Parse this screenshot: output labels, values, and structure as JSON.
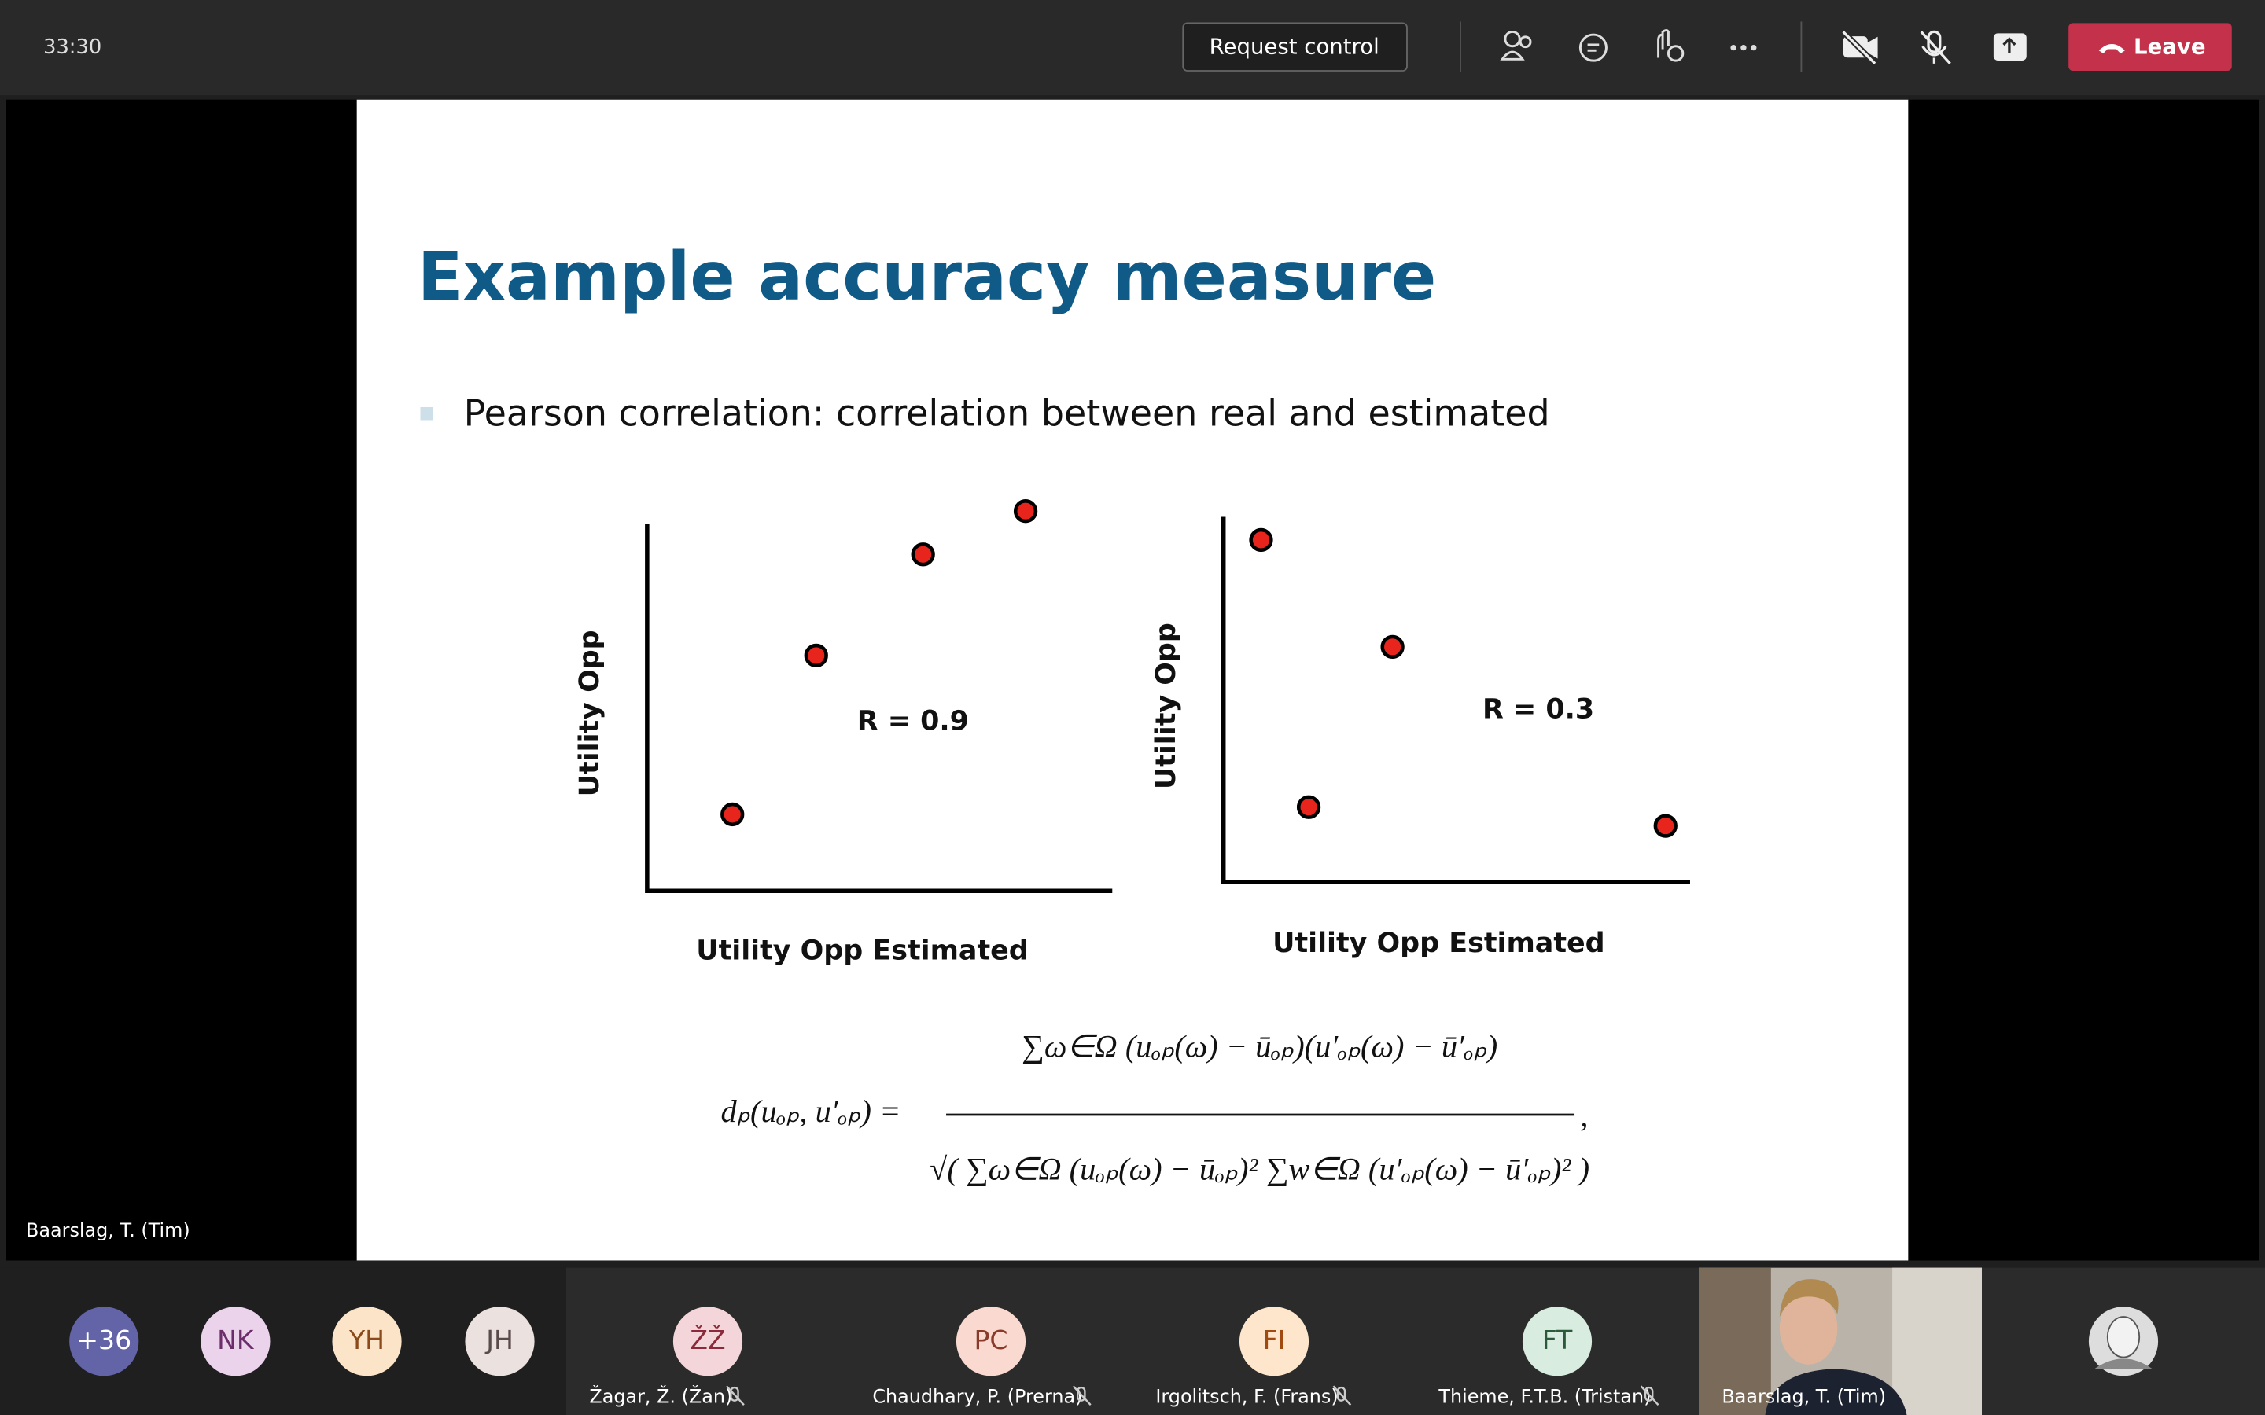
{
  "toolbar": {
    "time": "33:30",
    "request_control": "Request control",
    "leave": "Leave"
  },
  "stage": {
    "speaker": "Baarslag, T. (Tim)"
  },
  "slide": {
    "title": "Example accuracy measure",
    "bullet": "Pearson correlation: correlation between real and estimated",
    "plots": [
      {
        "y_label": "Utility Opp",
        "x_label": "Utility Opp Estimated",
        "annotation": "R = 0.9"
      },
      {
        "y_label": "Utility Opp",
        "x_label": "Utility Opp Estimated",
        "annotation": "R = 0.3"
      }
    ],
    "formula": {
      "lhs": "dₚ(uₒₚ, u′ₒₚ) =",
      "numerator": "∑ω∈Ω (uₒₚ(ω) − ūₒₚ)(u′ₒₚ(ω) − ū′ₒₚ)",
      "denominator": "√( ∑ω∈Ω (uₒₚ(ω) − ūₒₚ)² ∑w∈Ω (u′ₒₚ(ω) − ū′ₒₚ)² )",
      "tail": ","
    }
  },
  "participants": [
    {
      "initials": "+36"
    },
    {
      "initials": "NK"
    },
    {
      "initials": "YH"
    },
    {
      "initials": "JH"
    },
    {
      "initials": "ŽŽ",
      "name": "Žagar, Ž. (Žan)"
    },
    {
      "initials": "PC",
      "name": "Chaudhary, P. (Prerna)"
    },
    {
      "initials": "FI",
      "name": "Irgolitsch, F. (Frans)"
    },
    {
      "initials": "FT",
      "name": "Thieme, F.T.B. (Tristan)"
    },
    {
      "name": "Baarslag, T. (Tim)"
    }
  ]
}
